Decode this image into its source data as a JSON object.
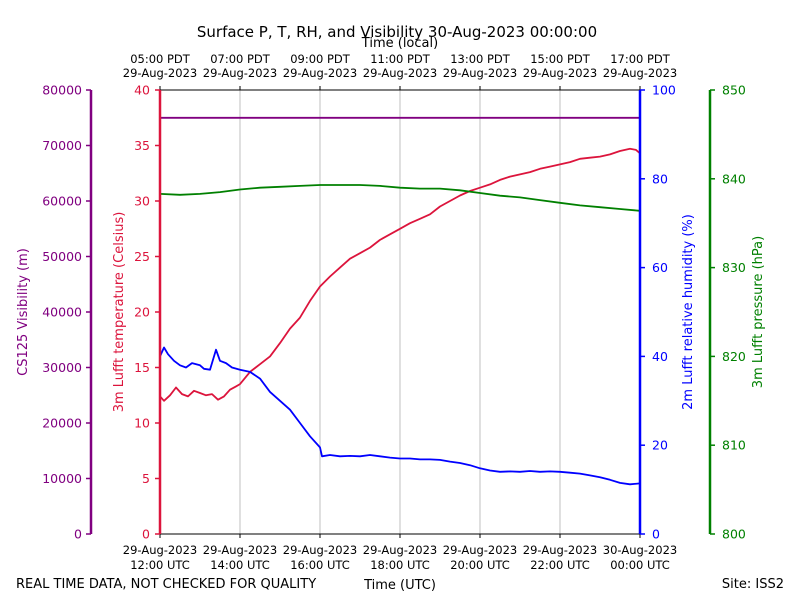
{
  "chart_data": {
    "type": "line",
    "title": "Surface P, T, RH, and Visibility 30-Aug-2023 00:00:00",
    "top_xlabel": "Time (local)",
    "xlabel": "Time (UTC)",
    "footer_left": "REAL TIME DATA, NOT CHECKED FOR QUALITY",
    "footer_right": "Site: ISS2",
    "grid": true,
    "x_range_hours_utc": [
      12,
      24
    ],
    "bottom_ticks": [
      {
        "date": "29-Aug-2023",
        "time": "12:00 UTC"
      },
      {
        "date": "29-Aug-2023",
        "time": "14:00 UTC"
      },
      {
        "date": "29-Aug-2023",
        "time": "16:00 UTC"
      },
      {
        "date": "29-Aug-2023",
        "time": "18:00 UTC"
      },
      {
        "date": "29-Aug-2023",
        "time": "20:00 UTC"
      },
      {
        "date": "29-Aug-2023",
        "time": "22:00 UTC"
      },
      {
        "date": "30-Aug-2023",
        "time": "00:00 UTC"
      }
    ],
    "top_ticks": [
      {
        "time": "05:00 PDT",
        "date": "29-Aug-2023"
      },
      {
        "time": "07:00 PDT",
        "date": "29-Aug-2023"
      },
      {
        "time": "09:00 PDT",
        "date": "29-Aug-2023"
      },
      {
        "time": "11:00 PDT",
        "date": "29-Aug-2023"
      },
      {
        "time": "13:00 PDT",
        "date": "29-Aug-2023"
      },
      {
        "time": "15:00 PDT",
        "date": "29-Aug-2023"
      },
      {
        "time": "17:00 PDT",
        "date": "29-Aug-2023"
      }
    ],
    "axes": {
      "visibility": {
        "label": "CS125 Visibility (m)",
        "range": [
          0,
          80000
        ],
        "ticks": [
          "0",
          "10000",
          "20000",
          "30000",
          "40000",
          "50000",
          "60000",
          "70000",
          "80000"
        ],
        "color": "#800080"
      },
      "temperature": {
        "label": "3m Lufft temperature (Celsius)",
        "range": [
          0,
          40
        ],
        "ticks": [
          "0",
          "5",
          "10",
          "15",
          "20",
          "25",
          "30",
          "35",
          "40"
        ],
        "color": "#dc143c"
      },
      "humidity": {
        "label": "2m Lufft relative humidity (%)",
        "range": [
          0,
          100
        ],
        "ticks": [
          "0",
          "20",
          "40",
          "60",
          "80",
          "100"
        ],
        "color": "#0000ff"
      },
      "pressure": {
        "label": "3m Lufft pressure (hPa)",
        "range": [
          800,
          850
        ],
        "ticks": [
          "800",
          "810",
          "820",
          "830",
          "840",
          "850"
        ],
        "color": "#008000"
      }
    },
    "series": [
      {
        "name": "Visibility",
        "axis": "visibility",
        "color": "#800080",
        "x": [
          12,
          24
        ],
        "y": [
          75000,
          75000
        ]
      },
      {
        "name": "Temperature",
        "axis": "temperature",
        "color": "#dc143c",
        "x": [
          12,
          12.1,
          12.25,
          12.4,
          12.55,
          12.7,
          12.85,
          13.0,
          13.15,
          13.3,
          13.45,
          13.6,
          13.75,
          13.9,
          14.0,
          14.25,
          14.5,
          14.75,
          15.0,
          15.25,
          15.5,
          15.75,
          16.0,
          16.25,
          16.5,
          16.75,
          17.0,
          17.25,
          17.5,
          17.75,
          18.0,
          18.25,
          18.5,
          18.75,
          19.0,
          19.25,
          19.5,
          19.75,
          20.0,
          20.25,
          20.5,
          20.75,
          21.0,
          21.25,
          21.5,
          21.75,
          22.0,
          22.25,
          22.5,
          22.75,
          23.0,
          23.25,
          23.5,
          23.75,
          23.9,
          24.0
        ],
        "y": [
          12.4,
          12.0,
          12.5,
          13.2,
          12.6,
          12.4,
          12.9,
          12.7,
          12.5,
          12.6,
          12.1,
          12.4,
          13.0,
          13.3,
          13.5,
          14.6,
          15.3,
          16.0,
          17.2,
          18.5,
          19.5,
          21.0,
          22.3,
          23.2,
          24.0,
          24.8,
          25.3,
          25.8,
          26.5,
          27.0,
          27.5,
          28.0,
          28.4,
          28.8,
          29.5,
          30.0,
          30.5,
          30.9,
          31.2,
          31.5,
          31.9,
          32.2,
          32.4,
          32.6,
          32.9,
          33.1,
          33.3,
          33.5,
          33.8,
          33.9,
          34.0,
          34.2,
          34.5,
          34.7,
          34.6,
          34.3
        ]
      },
      {
        "name": "Relative humidity",
        "axis": "humidity",
        "color": "#0000ff",
        "x": [
          12,
          12.1,
          12.2,
          12.35,
          12.5,
          12.65,
          12.8,
          13.0,
          13.1,
          13.25,
          13.4,
          13.5,
          13.65,
          13.8,
          14.0,
          14.25,
          14.5,
          14.75,
          15.0,
          15.25,
          15.5,
          15.75,
          16.0,
          16.05,
          16.25,
          16.5,
          16.75,
          17.0,
          17.25,
          17.5,
          17.75,
          18.0,
          18.25,
          18.5,
          18.75,
          19.0,
          19.25,
          19.5,
          19.75,
          20.0,
          20.25,
          20.5,
          20.75,
          21.0,
          21.25,
          21.5,
          21.75,
          22.0,
          22.25,
          22.5,
          22.75,
          23.0,
          23.25,
          23.5,
          23.75,
          24.0
        ],
        "y": [
          40.0,
          42.0,
          40.5,
          39.0,
          38.0,
          37.5,
          38.5,
          38.0,
          37.2,
          37.0,
          41.5,
          39.0,
          38.5,
          37.5,
          37.0,
          36.5,
          35.0,
          32.0,
          30.0,
          28.0,
          25.0,
          22.0,
          19.5,
          17.5,
          17.8,
          17.5,
          17.6,
          17.5,
          17.8,
          17.5,
          17.2,
          17.0,
          17.0,
          16.8,
          16.8,
          16.7,
          16.3,
          16.0,
          15.5,
          14.8,
          14.3,
          14.0,
          14.1,
          14.0,
          14.2,
          14.0,
          14.1,
          14.0,
          13.8,
          13.6,
          13.2,
          12.8,
          12.2,
          11.5,
          11.2,
          11.4
        ]
      },
      {
        "name": "Pressure",
        "axis": "pressure",
        "color": "#008000",
        "x": [
          12,
          12.5,
          13.0,
          13.5,
          14.0,
          14.5,
          15.0,
          15.5,
          16.0,
          16.5,
          17.0,
          17.5,
          18.0,
          18.5,
          19.0,
          19.5,
          20.0,
          20.5,
          21.0,
          21.5,
          22.0,
          22.5,
          23.0,
          23.5,
          24.0
        ],
        "y": [
          838.3,
          838.2,
          838.3,
          838.5,
          838.8,
          839.0,
          839.1,
          839.2,
          839.3,
          839.3,
          839.3,
          839.2,
          839.0,
          838.9,
          838.9,
          838.7,
          838.4,
          838.1,
          837.9,
          837.6,
          837.3,
          837.0,
          836.8,
          836.6,
          836.4
        ]
      }
    ]
  }
}
